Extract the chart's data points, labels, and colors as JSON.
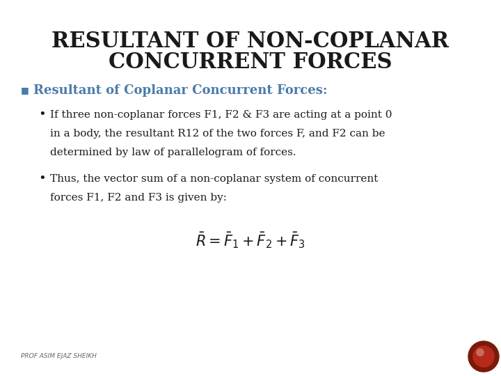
{
  "title_line1": "RESULTANT OF NON-COPLANAR",
  "title_line2": "CONCURRENT FORCES",
  "title_color": "#1a1a1a",
  "title_fontsize": 22,
  "title_fontfamily": "serif",
  "bullet_heading": "Resultant of Coplanar Concurrent Forces:",
  "bullet_heading_color": "#4a7aaa",
  "bullet_heading_fontsize": 13,
  "bullet1_line1": "If three non-coplanar forces F1, F2 & F3 are acting at a point 0",
  "bullet1_line2": "in a body, the resultant R12 of the two forces F, and F2 can be",
  "bullet1_line3": "determined by law of parallelogram of forces.",
  "bullet2_line1": "Thus, the vector sum of a non-coplanar system of concurrent",
  "bullet2_line2": "forces F1, F2 and F3 is given by:",
  "body_fontsize": 11,
  "body_color": "#1a1a1a",
  "formula": "$\\bar{R} = \\bar{F}_1 + \\bar{F}_2 + \\bar{F}_3$",
  "formula_fontsize": 15,
  "footer_text": "PROF ASIM EJAZ SHEIKH",
  "footer_fontsize": 6.5,
  "footer_color": "#666666",
  "background_color": "#ffffff",
  "circle_outer_color": "#7a1a0a",
  "circle_inner_color": "#b52a1a",
  "circle_highlight_color": "#d08878"
}
